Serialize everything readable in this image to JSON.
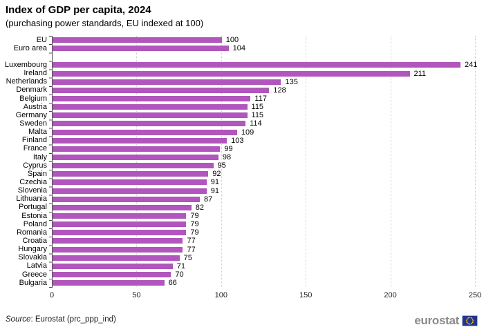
{
  "page": {
    "title": "Index of GDP per capita, 2024",
    "subtitle": "(purchasing power standards, EU indexed at 100)",
    "source": {
      "prefix": "Source",
      "text": ": Eurostat (prc_ppp_ind)"
    },
    "logo": {
      "text": "eurostat"
    }
  },
  "colors": {
    "bar": "#B156BC",
    "axis": "#4D4D4D",
    "grid": "#CFCFCF",
    "flag_bg": "#26358C",
    "flag_border": "#9DB8E8",
    "flag_stars": "#FFD617",
    "logo_text": "#8A8A8A"
  },
  "chart_data": {
    "type": "bar",
    "orientation": "horizontal",
    "title": "Index of GDP per capita, 2024",
    "subtitle": "(purchasing power standards, EU indexed at 100)",
    "xlabel": "",
    "ylabel": "",
    "xlim": [
      0,
      250
    ],
    "x_ticks": [
      0,
      50,
      100,
      150,
      200,
      250
    ],
    "grid": "vertical-dotted",
    "legend": "none",
    "groups": [
      {
        "name": "aggregates",
        "items": [
          {
            "label": "EU",
            "value": 100
          },
          {
            "label": "Euro area",
            "value": 104
          }
        ]
      },
      {
        "name": "countries",
        "items": [
          {
            "label": "Luxembourg",
            "value": 241
          },
          {
            "label": "Ireland",
            "value": 211
          },
          {
            "label": "Netherlands",
            "value": 135
          },
          {
            "label": "Denmark",
            "value": 128
          },
          {
            "label": "Belgium",
            "value": 117
          },
          {
            "label": "Austria",
            "value": 115
          },
          {
            "label": "Germany",
            "value": 115
          },
          {
            "label": "Sweden",
            "value": 114
          },
          {
            "label": "Malta",
            "value": 109
          },
          {
            "label": "Finland",
            "value": 103
          },
          {
            "label": "France",
            "value": 99
          },
          {
            "label": "Italy",
            "value": 98
          },
          {
            "label": "Cyprus",
            "value": 95
          },
          {
            "label": "Spain",
            "value": 92
          },
          {
            "label": "Czechia",
            "value": 91
          },
          {
            "label": "Slovenia",
            "value": 91
          },
          {
            "label": "Lithuania",
            "value": 87
          },
          {
            "label": "Portugal",
            "value": 82
          },
          {
            "label": "Estonia",
            "value": 79
          },
          {
            "label": "Poland",
            "value": 79
          },
          {
            "label": "Romania",
            "value": 79
          },
          {
            "label": "Croatia",
            "value": 77
          },
          {
            "label": "Hungary",
            "value": 77
          },
          {
            "label": "Slovakia",
            "value": 75
          },
          {
            "label": "Latvia",
            "value": 71
          },
          {
            "label": "Greece",
            "value": 70
          },
          {
            "label": "Bulgaria",
            "value": 66
          }
        ]
      }
    ]
  }
}
